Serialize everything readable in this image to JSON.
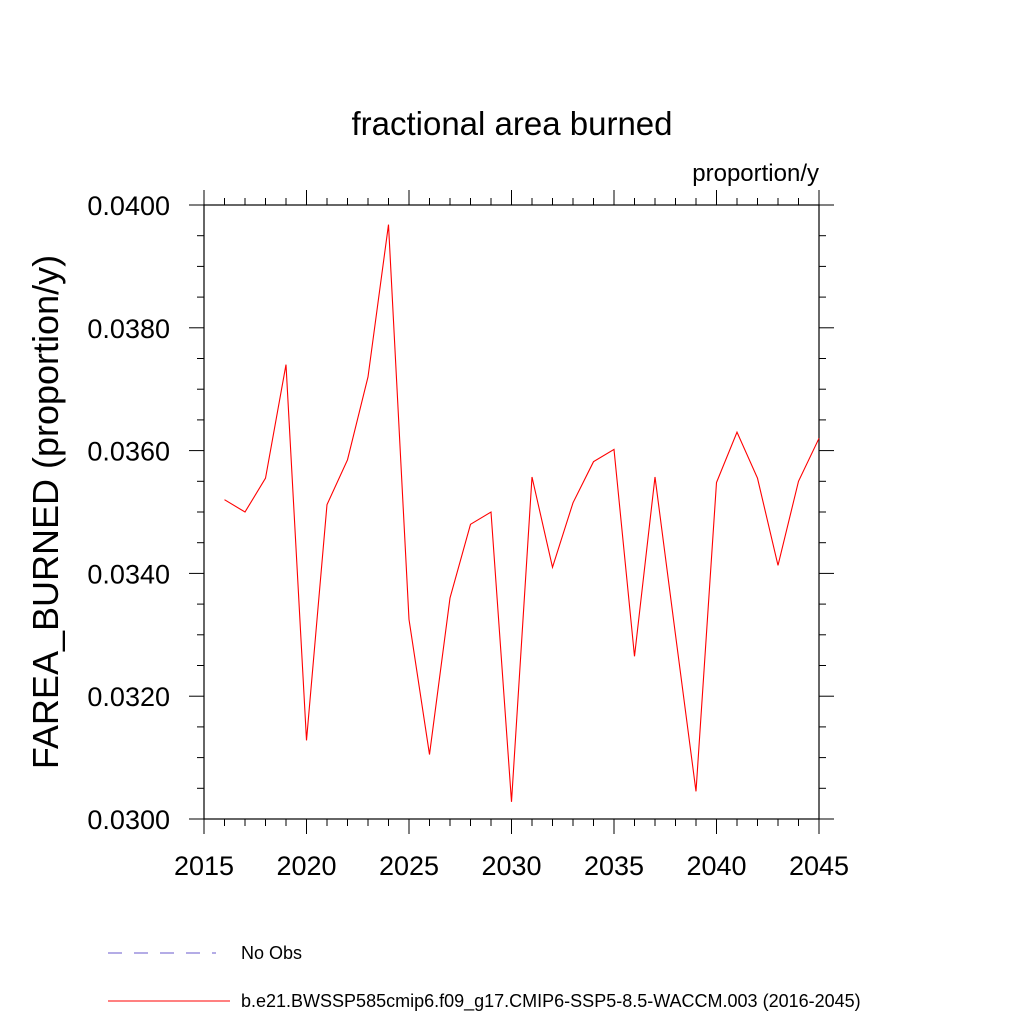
{
  "chart_data": {
    "type": "line",
    "title": "fractional area burned",
    "units_label": "proportion/y",
    "ylabel": "FAREA_BURNED  (proportion/y)",
    "xlabel": "",
    "xlim": [
      2015,
      2045
    ],
    "ylim": [
      0.03,
      0.04
    ],
    "x_ticks": [
      2015,
      2020,
      2025,
      2030,
      2035,
      2040,
      2045
    ],
    "x_tick_labels": [
      "2015",
      "2020",
      "2025",
      "2030",
      "2035",
      "2040",
      "2045"
    ],
    "y_ticks": [
      0.03,
      0.032,
      0.034,
      0.036,
      0.038,
      0.04
    ],
    "y_tick_labels": [
      "0.0300",
      "0.0320",
      "0.0340",
      "0.0360",
      "0.0380",
      "0.0400"
    ],
    "grid": false,
    "legend_position": "bottom",
    "legend": [
      {
        "label": "No Obs",
        "color": "#6a5acd",
        "style": "dashed"
      },
      {
        "label": "b.e21.BWSSP585cmip6.f09_g17.CMIP6-SSP5-8.5-WACCM.003 (2016-2045)",
        "color": "#ff0000",
        "style": "solid"
      }
    ],
    "series": [
      {
        "name": "b.e21.BWSSP585cmip6.f09_g17.CMIP6-SSP5-8.5-WACCM.003 (2016-2045)",
        "color": "#ff0000",
        "x": [
          2016,
          2017,
          2018,
          2019,
          2020,
          2021,
          2022,
          2023,
          2024,
          2025,
          2026,
          2027,
          2028,
          2029,
          2030,
          2031,
          2032,
          2033,
          2034,
          2035,
          2036,
          2037,
          2038,
          2039,
          2040,
          2041,
          2042,
          2043,
          2044,
          2045
        ],
        "values": [
          0.0352,
          0.035,
          0.03555,
          0.0374,
          0.03128,
          0.03512,
          0.03585,
          0.0372,
          0.03968,
          0.03325,
          0.03105,
          0.0336,
          0.0348,
          0.035,
          0.03028,
          0.03557,
          0.0341,
          0.03515,
          0.03582,
          0.03602,
          0.03265,
          0.03557,
          0.033,
          0.03045,
          0.03548,
          0.0363,
          0.03555,
          0.03413,
          0.0355,
          0.0362
        ]
      }
    ]
  }
}
